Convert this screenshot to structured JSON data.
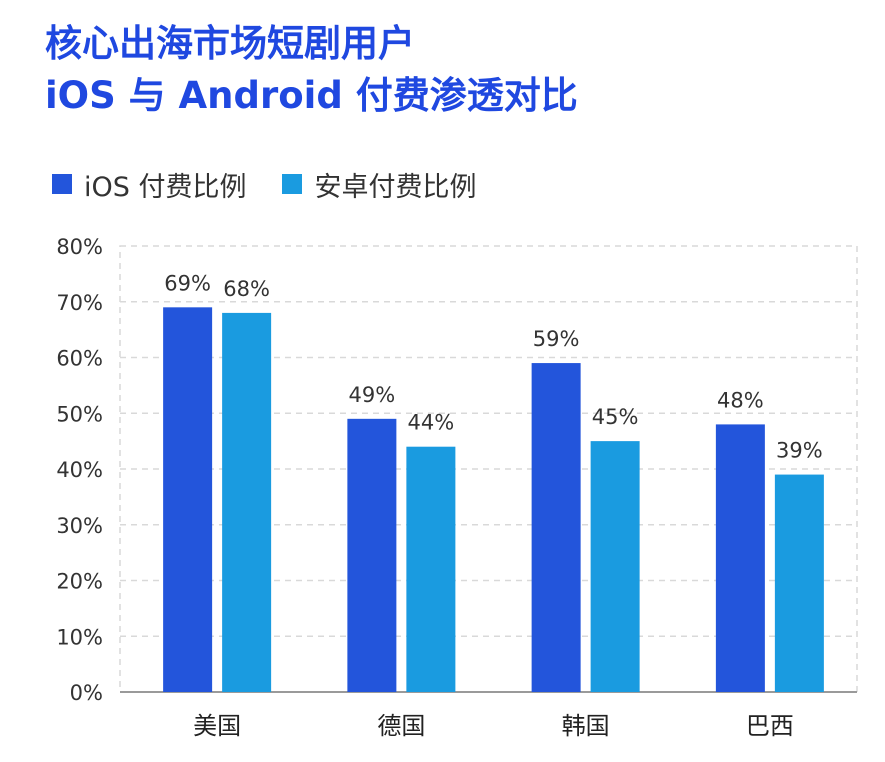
{
  "title_lines": [
    "核心出海市场短剧用户",
    "iOS 与 Android 付费渗透对比"
  ],
  "chart_data": {
    "type": "bar",
    "title": "核心出海市场短剧用户 iOS 与 Android 付费渗透对比",
    "categories": [
      "美国",
      "德国",
      "韩国",
      "巴西"
    ],
    "series": [
      {
        "name": "iOS 付费比例",
        "values": [
          69,
          49,
          59,
          48
        ],
        "color": "#2355db"
      },
      {
        "name": "安卓付费比例",
        "values": [
          68,
          44,
          45,
          39
        ],
        "color": "#1a9be0"
      }
    ],
    "data_labels": [
      [
        "69%",
        "49%",
        "59%",
        "48%"
      ],
      [
        "68%",
        "44%",
        "45%",
        "39%"
      ]
    ],
    "y_ticks": [
      "0%",
      "10%",
      "20%",
      "30%",
      "40%",
      "50%",
      "60%",
      "70%",
      "80%"
    ],
    "ylim": [
      0,
      80
    ],
    "y_unit": "%",
    "grid": true,
    "legend_position": "top-left"
  }
}
